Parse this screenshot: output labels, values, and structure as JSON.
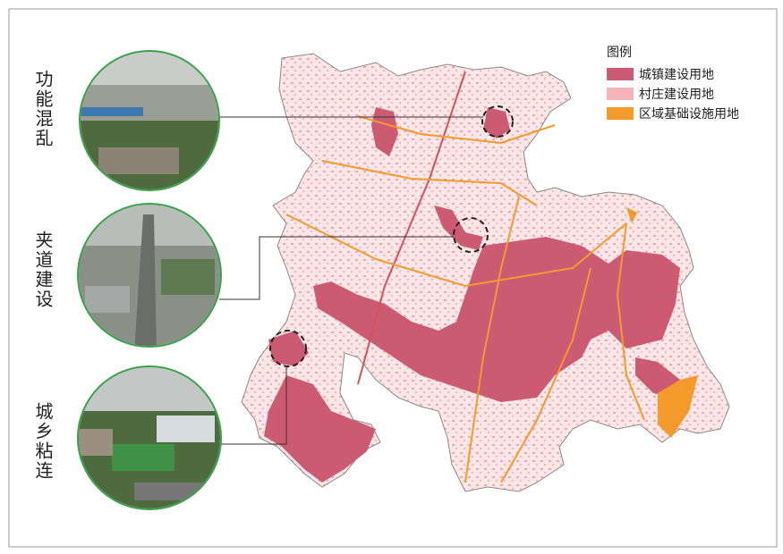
{
  "legend": {
    "title": "图例",
    "items": [
      {
        "label": "城镇建设用地",
        "color": "#cc5a72"
      },
      {
        "label": "村庄建设用地",
        "color": "#f4b4b9"
      },
      {
        "label": "区域基础设施用地",
        "color": "#f39a2b"
      }
    ]
  },
  "callouts": [
    {
      "label": "功能混乱"
    },
    {
      "label": "夹道建设"
    },
    {
      "label": "城乡粘连"
    }
  ]
}
